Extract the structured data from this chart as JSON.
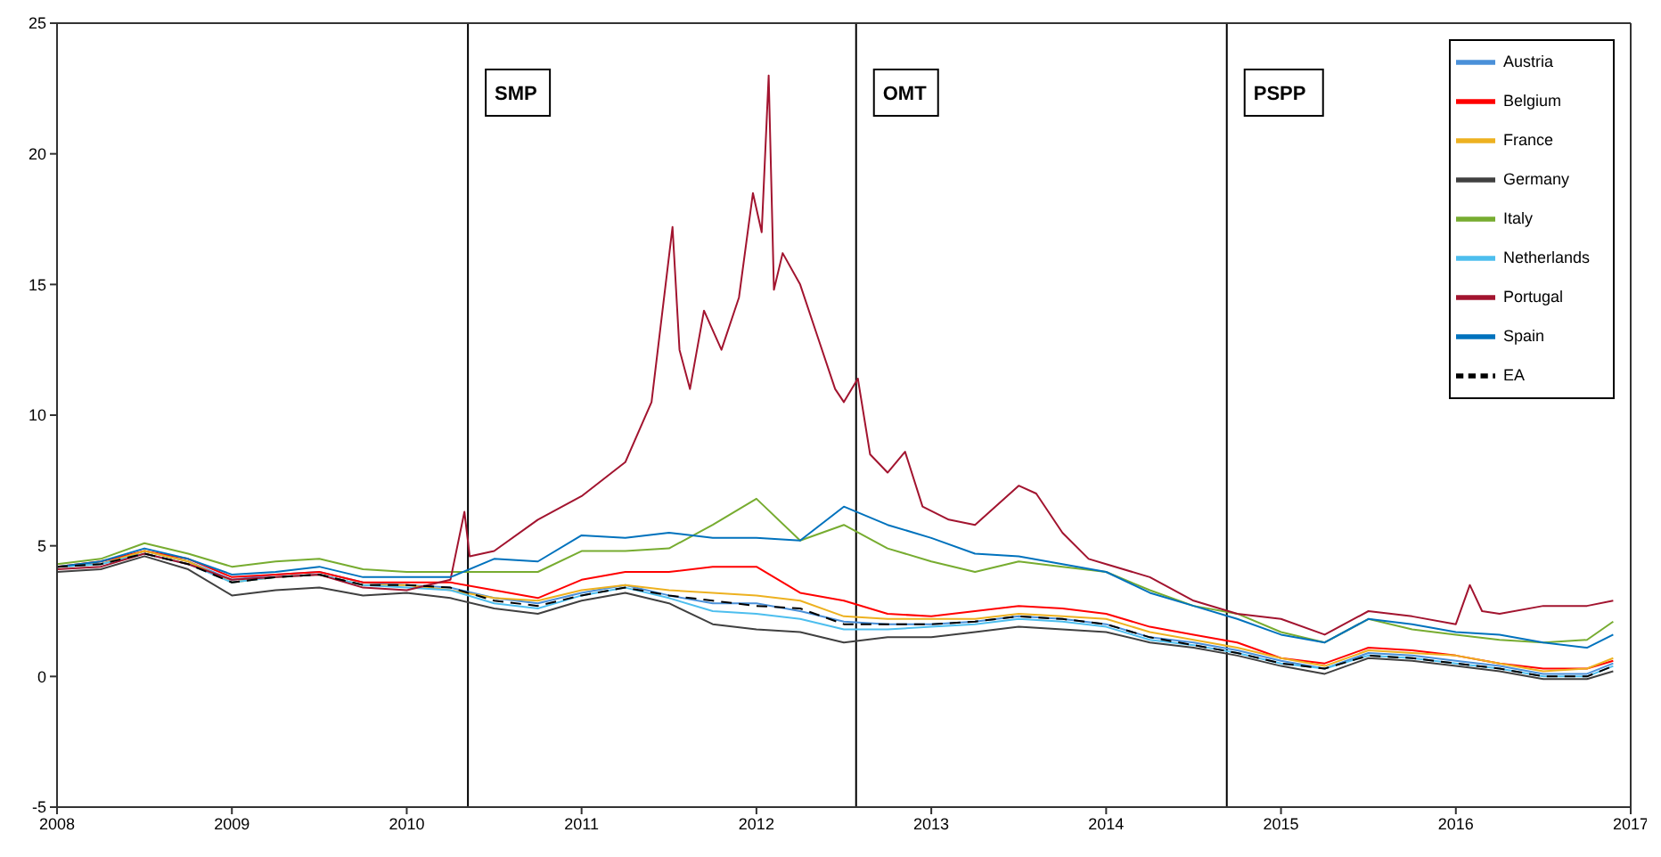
{
  "chart_data": {
    "type": "line",
    "xlim": [
      2008,
      2017
    ],
    "xticks": [
      2008,
      2009,
      2010,
      2011,
      2012,
      2013,
      2014,
      2015,
      2016,
      2017
    ],
    "ylim": [
      -5,
      25
    ],
    "yticks": [
      -5,
      0,
      5,
      10,
      15,
      20,
      25
    ],
    "grid": false,
    "legend": "top right",
    "marker": "none",
    "line_style": "solid",
    "x": [
      2008,
      2008.25,
      2008.5,
      2008.75,
      2009,
      2009.25,
      2009.5,
      2009.75,
      2010,
      2010.25,
      2010.5,
      2010.75,
      2011,
      2011.25,
      2011.5,
      2011.75,
      2012,
      2012.25,
      2012.5,
      2012.75,
      2013,
      2013.25,
      2013.5,
      2013.75,
      2014,
      2014.25,
      2014.5,
      2014.75,
      2015,
      2015.25,
      2015.5,
      2015.75,
      2016,
      2016.25,
      2016.5,
      2016.75,
      2016.9
    ],
    "ref_lines": [
      {
        "axis": "x",
        "value": 2010.35,
        "label": "SMP",
        "color": "#000000"
      },
      {
        "axis": "x",
        "value": 2012.57,
        "label": "OMT",
        "color": "#000000"
      },
      {
        "axis": "x",
        "value": 2014.69,
        "label": "PSPP",
        "color": "#000000"
      }
    ],
    "series": [
      {
        "name": "Austria",
        "color": "#4a90d9",
        "values": [
          4.2,
          4.3,
          4.8,
          4.4,
          3.7,
          3.9,
          4.0,
          3.6,
          3.5,
          3.4,
          3.0,
          2.8,
          3.2,
          3.5,
          3.1,
          2.8,
          2.8,
          2.5,
          2.1,
          2.0,
          2.0,
          2.1,
          2.3,
          2.2,
          2.0,
          1.5,
          1.3,
          1.0,
          0.6,
          0.3,
          0.9,
          0.8,
          0.6,
          0.4,
          0.1,
          0.1,
          0.5
        ]
      },
      {
        "name": "Belgium",
        "color": "#ff0000",
        "values": [
          4.2,
          4.4,
          4.8,
          4.5,
          3.8,
          3.9,
          4.0,
          3.6,
          3.6,
          3.6,
          3.3,
          3.0,
          3.7,
          4.0,
          4.0,
          4.2,
          4.2,
          3.2,
          2.9,
          2.4,
          2.3,
          2.5,
          2.7,
          2.6,
          2.4,
          1.9,
          1.6,
          1.3,
          0.7,
          0.5,
          1.1,
          1.0,
          0.8,
          0.5,
          0.3,
          0.3,
          0.6
        ]
      },
      {
        "name": "France",
        "color": "#edb120",
        "values": [
          4.2,
          4.3,
          4.8,
          4.4,
          3.6,
          3.8,
          3.9,
          3.5,
          3.5,
          3.3,
          3.0,
          2.9,
          3.3,
          3.5,
          3.3,
          3.2,
          3.1,
          2.9,
          2.3,
          2.2,
          2.2,
          2.2,
          2.4,
          2.3,
          2.2,
          1.7,
          1.4,
          1.1,
          0.7,
          0.4,
          1.0,
          0.9,
          0.8,
          0.5,
          0.2,
          0.3,
          0.7
        ]
      },
      {
        "name": "Germany",
        "color": "#404040",
        "values": [
          4.0,
          4.1,
          4.6,
          4.1,
          3.1,
          3.3,
          3.4,
          3.1,
          3.2,
          3.0,
          2.6,
          2.4,
          2.9,
          3.2,
          2.8,
          2.0,
          1.8,
          1.7,
          1.3,
          1.5,
          1.5,
          1.7,
          1.9,
          1.8,
          1.7,
          1.3,
          1.1,
          0.8,
          0.4,
          0.1,
          0.7,
          0.6,
          0.4,
          0.2,
          -0.1,
          -0.1,
          0.2
        ]
      },
      {
        "name": "Italy",
        "color": "#77ac30",
        "values": [
          4.3,
          4.5,
          5.1,
          4.7,
          4.2,
          4.4,
          4.5,
          4.1,
          4.0,
          4.0,
          4.0,
          4.0,
          4.8,
          4.8,
          4.9,
          5.8,
          6.8,
          5.2,
          5.8,
          4.9,
          4.4,
          4.0,
          4.4,
          4.2,
          4.0,
          3.3,
          2.7,
          2.4,
          1.7,
          1.3,
          2.2,
          1.8,
          1.6,
          1.4,
          1.3,
          1.4,
          2.1
        ]
      },
      {
        "name": "Netherlands",
        "color": "#4dbeee",
        "values": [
          4.2,
          4.3,
          4.7,
          4.3,
          3.6,
          3.8,
          3.9,
          3.5,
          3.4,
          3.3,
          2.8,
          2.6,
          3.1,
          3.4,
          3.0,
          2.5,
          2.4,
          2.2,
          1.8,
          1.8,
          1.9,
          2.0,
          2.2,
          2.1,
          1.9,
          1.4,
          1.2,
          0.9,
          0.5,
          0.3,
          0.8,
          0.7,
          0.5,
          0.3,
          0.0,
          0.0,
          0.4
        ]
      },
      {
        "name": "Portugal",
        "color": "#a2142f",
        "x": [
          2008,
          2008.25,
          2008.5,
          2008.75,
          2009,
          2009.25,
          2009.5,
          2009.75,
          2010,
          2010.25,
          2010.33,
          2010.36,
          2010.5,
          2010.75,
          2011,
          2011.25,
          2011.4,
          2011.52,
          2011.56,
          2011.62,
          2011.7,
          2011.8,
          2011.9,
          2011.98,
          2012.03,
          2012.07,
          2012.1,
          2012.15,
          2012.25,
          2012.35,
          2012.45,
          2012.5,
          2012.58,
          2012.65,
          2012.75,
          2012.85,
          2012.95,
          2013.1,
          2013.25,
          2013.5,
          2013.6,
          2013.75,
          2013.9,
          2014,
          2014.25,
          2014.5,
          2014.75,
          2015,
          2015.25,
          2015.5,
          2015.75,
          2016,
          2016.08,
          2016.15,
          2016.25,
          2016.5,
          2016.75,
          2016.9
        ],
        "values": [
          4.1,
          4.2,
          4.7,
          4.3,
          3.7,
          3.8,
          3.9,
          3.4,
          3.3,
          3.7,
          6.3,
          4.6,
          4.8,
          6.0,
          6.9,
          8.2,
          10.5,
          17.2,
          12.5,
          11.0,
          14.0,
          12.5,
          14.5,
          18.5,
          17.0,
          23.0,
          14.8,
          16.2,
          15.0,
          13.0,
          11.0,
          10.5,
          11.4,
          8.5,
          7.8,
          8.6,
          6.5,
          6.0,
          5.8,
          7.3,
          7.0,
          5.5,
          4.5,
          4.3,
          3.8,
          2.9,
          2.4,
          2.2,
          1.6,
          2.5,
          2.3,
          2.0,
          3.5,
          2.5,
          2.4,
          2.7,
          2.7,
          2.9
        ]
      },
      {
        "name": "Spain",
        "color": "#0072bd",
        "values": [
          4.2,
          4.4,
          4.9,
          4.5,
          3.9,
          4.0,
          4.2,
          3.8,
          3.8,
          3.8,
          4.5,
          4.4,
          5.4,
          5.3,
          5.5,
          5.3,
          5.3,
          5.2,
          6.5,
          5.8,
          5.3,
          4.7,
          4.6,
          4.3,
          4.0,
          3.2,
          2.7,
          2.2,
          1.6,
          1.3,
          2.2,
          2.0,
          1.7,
          1.6,
          1.3,
          1.1,
          1.6
        ]
      },
      {
        "name": "EA",
        "color": "#000000",
        "line_style": "dashed",
        "values": [
          4.2,
          4.3,
          4.7,
          4.3,
          3.6,
          3.8,
          3.9,
          3.5,
          3.5,
          3.4,
          2.9,
          2.7,
          3.1,
          3.4,
          3.1,
          2.9,
          2.7,
          2.6,
          2.0,
          2.0,
          2.0,
          2.1,
          2.3,
          2.2,
          2.0,
          1.5,
          1.2,
          0.9,
          0.5,
          0.3,
          0.8,
          0.7,
          0.5,
          0.3,
          0.0,
          0.0,
          0.4
        ]
      }
    ]
  }
}
